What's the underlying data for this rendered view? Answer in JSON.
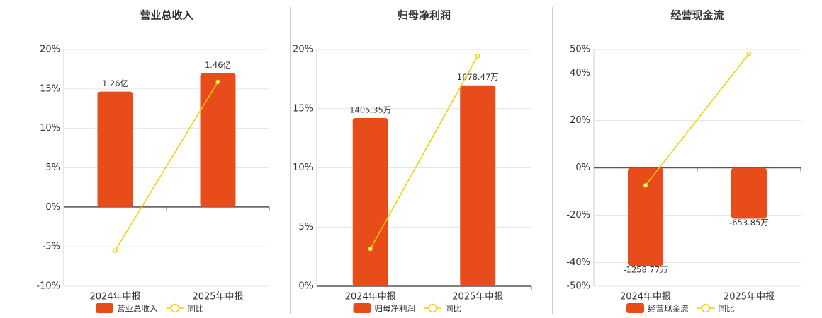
{
  "chart_data": [
    {
      "type": "bar",
      "title": "营业总收入",
      "categories": [
        "2024年中报",
        "2025年中报"
      ],
      "series": [
        {
          "name": "营业总收入",
          "color": "#e84c1a",
          "values": [
            1.26,
            1.46
          ],
          "value_labels": [
            "1.26亿",
            "1.46亿"
          ],
          "axis": "y2"
        },
        {
          "name": "同比",
          "color": "#f0d000",
          "type": "line",
          "values": [
            -5.5,
            15.9
          ]
        }
      ],
      "ylim": [
        -10,
        20
      ],
      "yticks": [
        {
          "value": -10,
          "label": "-10%"
        },
        {
          "value": -5,
          "label": "-5%"
        },
        {
          "value": 0,
          "label": "0%"
        },
        {
          "value": 5,
          "label": "5%"
        },
        {
          "value": 10,
          "label": "10%"
        },
        {
          "value": 15,
          "label": "15%"
        },
        {
          "value": 20,
          "label": "20%"
        }
      ],
      "y2lim": [
        -0.866,
        1.72
      ],
      "grid": true
    },
    {
      "type": "bar",
      "title": "归母净利润",
      "categories": [
        "2024年中报",
        "2025年中报"
      ],
      "series": [
        {
          "name": "归母净利润",
          "color": "#e84c1a",
          "values": [
            1405.35,
            1678.47
          ],
          "value_labels": [
            "1405.35万",
            "1678.47万"
          ],
          "axis": "y2"
        },
        {
          "name": "同比",
          "color": "#f0d000",
          "type": "line",
          "values": [
            3.16,
            19.46
          ]
        }
      ],
      "ylim": [
        0,
        20
      ],
      "yticks": [
        {
          "value": 0,
          "label": "0%"
        },
        {
          "value": 5,
          "label": "5%"
        },
        {
          "value": 10,
          "label": "10%"
        },
        {
          "value": 15,
          "label": "15%"
        },
        {
          "value": 20,
          "label": "20%"
        }
      ],
      "y2lim": [
        0,
        1978
      ],
      "grid": true
    },
    {
      "type": "bar",
      "title": "经营现金流",
      "categories": [
        "2024年中报",
        "2025年中报"
      ],
      "series": [
        {
          "name": "经营现金流",
          "color": "#e84c1a",
          "values": [
            -1258.77,
            -653.85
          ],
          "value_labels": [
            "-1258.77万",
            "-653.85万"
          ],
          "axis": "y2"
        },
        {
          "name": "同比",
          "color": "#f0d000",
          "type": "line",
          "values": [
            -7.4,
            48.2
          ]
        }
      ],
      "ylim": [
        -50,
        50
      ],
      "yticks": [
        {
          "value": -50,
          "label": "-50%"
        },
        {
          "value": -40,
          "label": "-40%"
        },
        {
          "value": -20,
          "label": "-20%"
        },
        {
          "value": 0,
          "label": "0%"
        },
        {
          "value": 20,
          "label": "20%"
        },
        {
          "value": 40,
          "label": "40%"
        },
        {
          "value": 50,
          "label": "50%"
        }
      ],
      "y2lim": [
        -1521,
        1521
      ],
      "grid": true
    }
  ]
}
